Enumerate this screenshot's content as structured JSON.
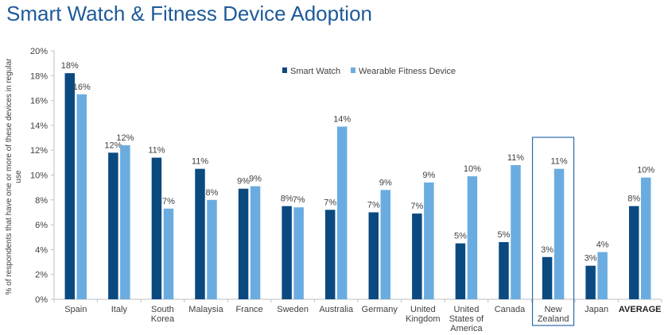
{
  "title": "Smart Watch & Fitness Device Adoption",
  "colors": {
    "smart_watch": "#0b4a80",
    "fitness_device": "#6aace0",
    "axis": "#bfbfbf",
    "text": "#404040",
    "highlight_box": "#2c6aa8"
  },
  "chart_data": {
    "type": "bar",
    "title": "Smart Watch & Fitness Device Adoption",
    "ylabel": "% of respondents that have one or more of these devices in regular use",
    "xlabel": "",
    "ylim": [
      0,
      20
    ],
    "yticks": [
      "0%",
      "2%",
      "4%",
      "6%",
      "8%",
      "10%",
      "12%",
      "14%",
      "16%",
      "18%",
      "20%"
    ],
    "grid": false,
    "legend": "top-center",
    "categories": [
      [
        "Spain"
      ],
      [
        "Italy"
      ],
      [
        "South",
        "Korea"
      ],
      [
        "Malaysia"
      ],
      [
        "France"
      ],
      [
        "Sweden"
      ],
      [
        "Australia"
      ],
      [
        "Germany"
      ],
      [
        "United",
        "Kingdom"
      ],
      [
        "United",
        "States of",
        "America"
      ],
      [
        "Canada"
      ],
      [
        "New",
        "Zealand"
      ],
      [
        "Japan"
      ],
      [
        "AVERAGE"
      ]
    ],
    "series": [
      {
        "name": "Smart Watch",
        "values": [
          18.2,
          11.8,
          11.4,
          10.5,
          8.9,
          7.5,
          7.2,
          7.0,
          6.9,
          4.5,
          4.6,
          3.4,
          2.7,
          7.5
        ],
        "labels": [
          "18%",
          "12%",
          "11%",
          "11%",
          "9%",
          "8%",
          "7%",
          "7%",
          "7%",
          "5%",
          "5%",
          "3%",
          "3%",
          "8%"
        ]
      },
      {
        "name": "Wearable Fitness Device",
        "values": [
          16.5,
          12.4,
          7.3,
          8.0,
          9.1,
          7.4,
          13.9,
          8.8,
          9.4,
          9.9,
          10.8,
          10.5,
          3.8,
          9.8
        ],
        "labels": [
          "16%",
          "12%",
          "7%",
          "8%",
          "9%",
          "7%",
          "14%",
          "9%",
          "9%",
          "10%",
          "11%",
          "11%",
          "4%",
          "10%"
        ]
      }
    ],
    "highlighted_category": "New Zealand",
    "bold_category": "AVERAGE"
  }
}
